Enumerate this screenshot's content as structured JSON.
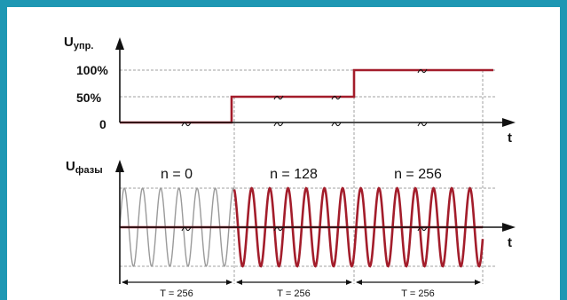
{
  "axes": {
    "upper_label_main": "U",
    "upper_label_sub": "упр.",
    "lower_label_main": "U",
    "lower_label_sub": "фазы",
    "time_label": "t"
  },
  "levels": {
    "high": "100%",
    "mid": "50%",
    "zero": "0"
  },
  "segments": [
    {
      "n_label": "n = 0",
      "period_label": "T = 256",
      "control_level_percent": 0
    },
    {
      "n_label": "n = 128",
      "period_label": "T = 256",
      "control_level_percent": 50
    },
    {
      "n_label": "n = 256",
      "period_label": "T = 256",
      "control_level_percent": 100
    }
  ],
  "colors": {
    "frame": "#1e97b3",
    "signal": "#a31d2b",
    "sine_grey": "#9a9a9a",
    "guide": "#a0a0a0",
    "axis": "#111111"
  }
}
